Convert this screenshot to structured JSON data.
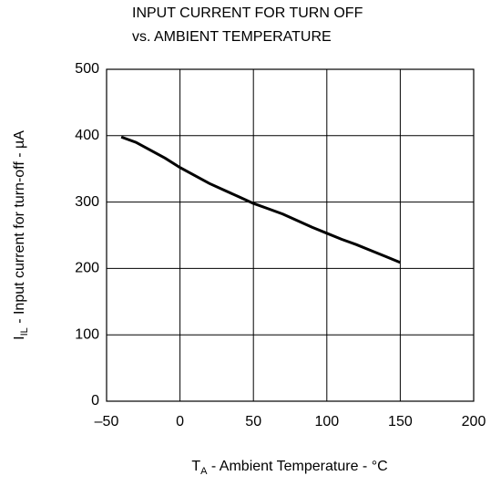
{
  "chart_data": {
    "type": "line",
    "title": [
      "INPUT CURRENT FOR TURN OFF",
      "vs. AMBIENT TEMPERATURE"
    ],
    "xlabel": {
      "symbol": "T",
      "subscript": "A",
      "text": " - Ambient Temperature - °C"
    },
    "ylabel": {
      "symbol": "I",
      "subscript": "IL",
      "text": " - Input current for turn-off - µA"
    },
    "x": [
      -40,
      -30,
      -20,
      -10,
      0,
      10,
      20,
      30,
      40,
      50,
      60,
      70,
      80,
      90,
      100,
      110,
      120,
      130,
      140,
      150
    ],
    "series": [
      {
        "color": "#000000",
        "values": [
          398,
          390,
          378,
          366,
          352,
          340,
          328,
          318,
          308,
          298,
          290,
          282,
          272,
          262,
          253,
          244,
          236,
          227,
          218,
          209
        ]
      }
    ],
    "xlim": [
      -50,
      200
    ],
    "xticks": [
      {
        "value": -50,
        "label": "–50"
      },
      0,
      50,
      100,
      150,
      200
    ],
    "ylim": [
      0,
      500
    ],
    "yticks": [
      0,
      100,
      200,
      300,
      400,
      500
    ],
    "grid": true
  }
}
